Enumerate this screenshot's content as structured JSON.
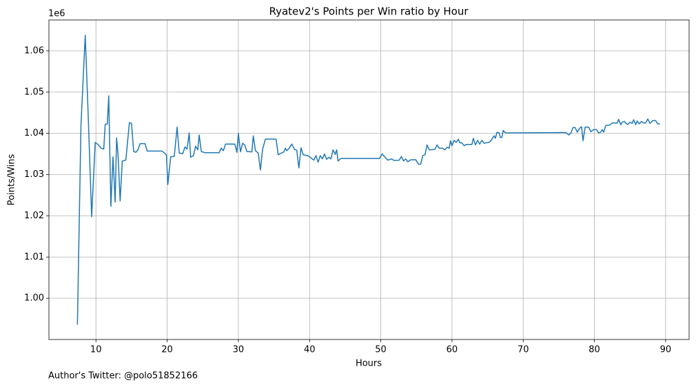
{
  "chart_data": {
    "type": "line",
    "title": "Ryatev2's Points per Win ratio by Hour",
    "xlabel": "Hours",
    "ylabel": "Points/Wins",
    "offset_text": "1e6",
    "footnote": "Author's Twitter: @polo51852166",
    "color": "#1f77b4",
    "grid": true,
    "xlim": [
      3.4,
      93.3
    ],
    "xticks": [
      10,
      20,
      30,
      40,
      50,
      60,
      70,
      80,
      90
    ],
    "ylim": [
      990000,
      1067500
    ],
    "yticks": [
      {
        "value": 1000000,
        "label": "1.00"
      },
      {
        "value": 1010000,
        "label": "1.01"
      },
      {
        "value": 1020000,
        "label": "1.02"
      },
      {
        "value": 1030000,
        "label": "1.03"
      },
      {
        "value": 1040000,
        "label": "1.04"
      },
      {
        "value": 1050000,
        "label": "1.05"
      },
      {
        "value": 1060000,
        "label": "1.06"
      }
    ],
    "x": [
      7.4,
      7.9,
      8.5,
      8.9,
      9.4,
      9.9,
      10.3,
      10.7,
      11.1,
      11.3,
      11.6,
      11.8,
      12.1,
      12.4,
      12.7,
      12.9,
      13.1,
      13.4,
      13.7,
      14.2,
      14.7,
      15.0,
      15.3,
      15.6,
      15.9,
      16.2,
      16.9,
      17.2,
      19.3,
      19.9,
      20.1,
      20.5,
      21.0,
      21.4,
      21.7,
      22.2,
      22.5,
      22.8,
      23.1,
      23.3,
      23.7,
      24.0,
      24.3,
      24.5,
      24.8,
      25.3,
      27.3,
      27.6,
      27.9,
      28.2,
      29.5,
      29.8,
      30.0,
      30.3,
      30.6,
      30.9,
      31.2,
      31.9,
      32.1,
      32.4,
      32.8,
      33.1,
      33.4,
      33.8,
      35.3,
      35.6,
      36.0,
      36.4,
      36.6,
      36.8,
      37.2,
      37.5,
      37.9,
      38.2,
      38.5,
      38.8,
      39.1,
      39.7,
      40.1,
      40.6,
      40.9,
      41.2,
      41.5,
      41.8,
      42.1,
      42.4,
      42.7,
      43.0,
      43.3,
      43.6,
      43.8,
      44.0,
      44.4,
      49.8,
      50.2,
      50.6,
      51.0,
      51.5,
      51.9,
      52.6,
      52.9,
      53.2,
      53.5,
      53.8,
      54.2,
      54.9,
      55.3,
      55.6,
      55.9,
      56.2,
      56.5,
      56.8,
      57.6,
      57.9,
      58.2,
      58.7,
      59.0,
      59.3,
      59.6,
      59.8,
      60.0,
      60.3,
      60.6,
      60.9,
      61.1,
      61.4,
      61.7,
      62.0,
      62.8,
      63.0,
      63.3,
      63.6,
      63.9,
      64.2,
      64.5,
      64.8,
      65.2,
      65.5,
      65.9,
      66.1,
      66.3,
      66.6,
      66.8,
      67.0,
      67.2,
      67.5,
      76.0,
      76.4,
      76.7,
      77.0,
      77.3,
      77.6,
      77.9,
      78.2,
      78.4,
      78.7,
      79.2,
      79.5,
      79.9,
      80.3,
      80.6,
      80.9,
      81.1,
      81.3,
      81.6,
      82.1,
      82.5,
      83.2,
      83.4,
      83.7,
      83.9,
      84.2,
      84.5,
      84.7,
      85.0,
      85.3,
      85.5,
      85.8,
      86.0,
      86.3,
      86.6,
      86.9,
      87.2,
      87.5,
      87.8,
      88.2,
      88.6,
      88.9,
      89.2
    ],
    "values": [
      993600,
      1042000,
      1063800,
      1045000,
      1019800,
      1037800,
      1037300,
      1036400,
      1036200,
      1042200,
      1042300,
      1049100,
      1022300,
      1034300,
      1023300,
      1038900,
      1035000,
      1023600,
      1033300,
      1033500,
      1042600,
      1042400,
      1035600,
      1035400,
      1036000,
      1037500,
      1037500,
      1035700,
      1035700,
      1034800,
      1027600,
      1034300,
      1034400,
      1041500,
      1035200,
      1035100,
      1036700,
      1036200,
      1040100,
      1034200,
      1034600,
      1036900,
      1036000,
      1039600,
      1035600,
      1035300,
      1035300,
      1036400,
      1035800,
      1037400,
      1037400,
      1035400,
      1040000,
      1035500,
      1037600,
      1037200,
      1035600,
      1035500,
      1039400,
      1035800,
      1035200,
      1031100,
      1036100,
      1038600,
      1038600,
      1034800,
      1035200,
      1035500,
      1036400,
      1035800,
      1036500,
      1037400,
      1036100,
      1035900,
      1031600,
      1036500,
      1034800,
      1034600,
      1034200,
      1033500,
      1034600,
      1033000,
      1034600,
      1033800,
      1035000,
      1033700,
      1034200,
      1033800,
      1036000,
      1034900,
      1036000,
      1033300,
      1033900,
      1033900,
      1035000,
      1034200,
      1033500,
      1033800,
      1033400,
      1033500,
      1034400,
      1033300,
      1033800,
      1033100,
      1033600,
      1033600,
      1032500,
      1032500,
      1034600,
      1034800,
      1037200,
      1036000,
      1036100,
      1037200,
      1036400,
      1036400,
      1036000,
      1036600,
      1036400,
      1038200,
      1037000,
      1038300,
      1037800,
      1038600,
      1037700,
      1037700,
      1037000,
      1037300,
      1037300,
      1038800,
      1037200,
      1038300,
      1037400,
      1038300,
      1037600,
      1037700,
      1037800,
      1038300,
      1039400,
      1038800,
      1040200,
      1040200,
      1039000,
      1039000,
      1040700,
      1040100,
      1040200,
      1039600,
      1040100,
      1041400,
      1041400,
      1040300,
      1041200,
      1041600,
      1038200,
      1041500,
      1041500,
      1040400,
      1040900,
      1040900,
      1040100,
      1040300,
      1040900,
      1040300,
      1041900,
      1042000,
      1042500,
      1042500,
      1043400,
      1042100,
      1042700,
      1042900,
      1042300,
      1042200,
      1042700,
      1042400,
      1043300,
      1042100,
      1043000,
      1042300,
      1042900,
      1042500,
      1042500,
      1043500,
      1042400,
      1043100,
      1043100,
      1042300,
      1042300
    ]
  }
}
